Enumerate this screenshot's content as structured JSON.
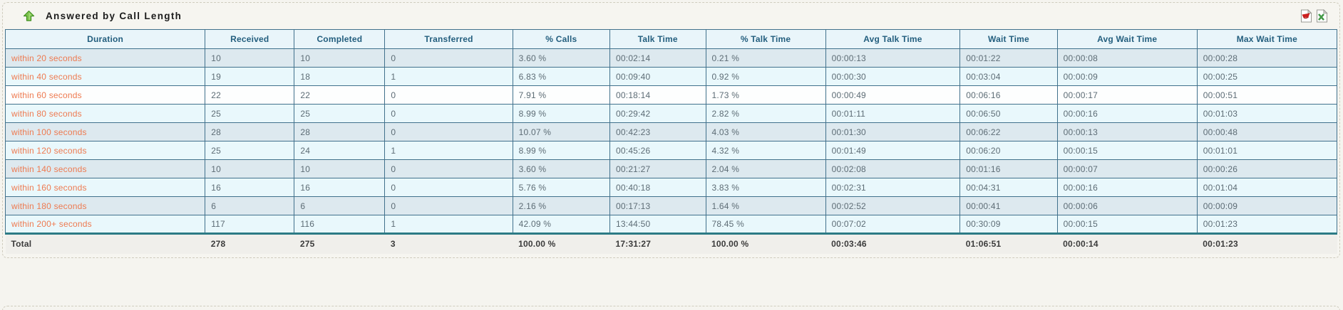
{
  "widget": {
    "title": "Answered by Call Length",
    "icons": {
      "collapse": "green-up-arrow",
      "export_pdf": "pdf-document",
      "export_excel": "excel-document"
    },
    "colors": {
      "row_dark": "#dde9ef",
      "row_light": "#e9f8fc",
      "row_white": "#fdfefe",
      "header_bg": "#e9f5fa",
      "header_text": "#235e7e",
      "duration_text": "#ee7a50",
      "value_text": "#5d6c75",
      "cell_border": "#41718c",
      "total_separator": "#2c7b85",
      "total_bg": "#f0efeb",
      "page_bg": "#f5f4ef"
    }
  },
  "table": {
    "columns": [
      "Duration",
      "Received",
      "Completed",
      "Transferred",
      "% Calls",
      "Talk Time",
      "% Talk Time",
      "Avg Talk Time",
      "Wait Time",
      "Avg Wait Time",
      "Max Wait Time"
    ],
    "rows": [
      {
        "shade": "dark",
        "cells": [
          "within 20 seconds",
          "10",
          "10",
          "0",
          "3.60 %",
          "00:02:14",
          "0.21 %",
          "00:00:13",
          "00:01:22",
          "00:00:08",
          "00:00:28"
        ]
      },
      {
        "shade": "light",
        "cells": [
          "within 40 seconds",
          "19",
          "18",
          "1",
          "6.83 %",
          "00:09:40",
          "0.92 %",
          "00:00:30",
          "00:03:04",
          "00:00:09",
          "00:00:25"
        ]
      },
      {
        "shade": "white",
        "cells": [
          "within 60 seconds",
          "22",
          "22",
          "0",
          "7.91 %",
          "00:18:14",
          "1.73 %",
          "00:00:49",
          "00:06:16",
          "00:00:17",
          "00:00:51"
        ]
      },
      {
        "shade": "light",
        "cells": [
          "within 80 seconds",
          "25",
          "25",
          "0",
          "8.99 %",
          "00:29:42",
          "2.82 %",
          "00:01:11",
          "00:06:50",
          "00:00:16",
          "00:01:03"
        ]
      },
      {
        "shade": "dark",
        "cells": [
          "within 100 seconds",
          "28",
          "28",
          "0",
          "10.07 %",
          "00:42:23",
          "4.03 %",
          "00:01:30",
          "00:06:22",
          "00:00:13",
          "00:00:48"
        ]
      },
      {
        "shade": "light",
        "cells": [
          "within 120 seconds",
          "25",
          "24",
          "1",
          "8.99 %",
          "00:45:26",
          "4.32 %",
          "00:01:49",
          "00:06:20",
          "00:00:15",
          "00:01:01"
        ]
      },
      {
        "shade": "dark",
        "cells": [
          "within 140 seconds",
          "10",
          "10",
          "0",
          "3.60 %",
          "00:21:27",
          "2.04 %",
          "00:02:08",
          "00:01:16",
          "00:00:07",
          "00:00:26"
        ]
      },
      {
        "shade": "light",
        "cells": [
          "within 160 seconds",
          "16",
          "16",
          "0",
          "5.76 %",
          "00:40:18",
          "3.83 %",
          "00:02:31",
          "00:04:31",
          "00:00:16",
          "00:01:04"
        ]
      },
      {
        "shade": "dark",
        "cells": [
          "within 180 seconds",
          "6",
          "6",
          "0",
          "2.16 %",
          "00:17:13",
          "1.64 %",
          "00:02:52",
          "00:00:41",
          "00:00:06",
          "00:00:09"
        ]
      },
      {
        "shade": "light",
        "cells": [
          "within 200+ seconds",
          "117",
          "116",
          "1",
          "42.09 %",
          "13:44:50",
          "78.45 %",
          "00:07:02",
          "00:30:09",
          "00:00:15",
          "00:01:23"
        ]
      }
    ],
    "total": {
      "cells": [
        "Total",
        "278",
        "275",
        "3",
        "100.00 %",
        "17:31:27",
        "100.00 %",
        "00:03:46",
        "01:06:51",
        "00:00:14",
        "00:01:23"
      ]
    }
  }
}
